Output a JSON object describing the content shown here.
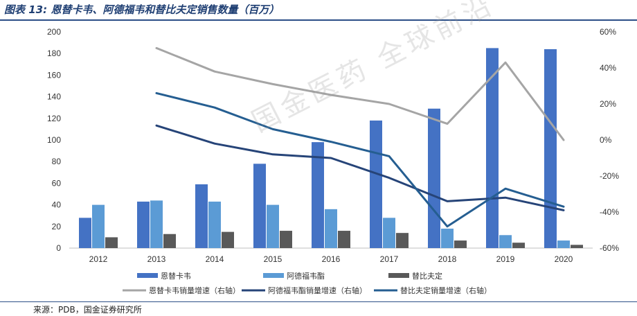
{
  "title": "图表 13: 恩替卡韦、阿德福韦和替比夫定销售数量（百万）",
  "source": "来源：PDB，国金证券研究所",
  "watermark": "国金医药 全球前沿",
  "colors": {
    "entecavir": "#4472c4",
    "adefovir": "#5b9bd5",
    "telbivudine": "#595959",
    "entecavir_growth": "#a5a5a5",
    "adefovir_growth": "#264478",
    "telbivudine_growth": "#255e91"
  },
  "chart_data": {
    "type": "bar",
    "categories": [
      "2012",
      "2013",
      "2014",
      "2015",
      "2016",
      "2017",
      "2018",
      "2019",
      "2020"
    ],
    "ylim": [
      0,
      200
    ],
    "y_ticks": [
      "0",
      "20",
      "40",
      "60",
      "80",
      "100",
      "120",
      "140",
      "160",
      "180",
      "200"
    ],
    "y2lim": [
      -60,
      60
    ],
    "y2_ticks": [
      "-60%",
      "-40%",
      "-20%",
      "0%",
      "20%",
      "40%",
      "60%"
    ],
    "grid": false,
    "legend_position": "bottom",
    "series": [
      {
        "name": "恩替卡韦",
        "type": "bar",
        "axis": "left",
        "values": [
          28,
          43,
          59,
          78,
          98,
          118,
          129,
          185,
          184
        ]
      },
      {
        "name": "阿德福韦酯",
        "type": "bar",
        "axis": "left",
        "values": [
          40,
          44,
          43,
          40,
          36,
          28,
          18,
          12,
          7
        ]
      },
      {
        "name": "替比夫定",
        "type": "bar",
        "axis": "left",
        "values": [
          10,
          13,
          15,
          16,
          16,
          14,
          7,
          5,
          3
        ]
      },
      {
        "name": "恩替卡韦销量增速（右轴）",
        "type": "line",
        "axis": "right",
        "x": [
          "2013",
          "2014",
          "2015",
          "2016",
          "2017",
          "2018",
          "2019",
          "2020"
        ],
        "values": [
          51,
          38,
          31,
          25,
          20,
          9,
          43,
          0
        ]
      },
      {
        "name": "阿德福韦酯销量增速（右轴）",
        "type": "line",
        "axis": "right",
        "x": [
          "2013",
          "2014",
          "2015",
          "2016",
          "2017",
          "2018",
          "2019",
          "2020"
        ],
        "values": [
          8,
          -2,
          -8,
          -10,
          -21,
          -34,
          -32,
          -39
        ]
      },
      {
        "name": "替比夫定销量增速（右轴）",
        "type": "line",
        "axis": "right",
        "x": [
          "2013",
          "2014",
          "2015",
          "2016",
          "2017",
          "2018",
          "2019",
          "2020"
        ],
        "values": [
          26,
          18,
          6,
          -1,
          -9,
          -48,
          -27,
          -37
        ]
      }
    ]
  }
}
